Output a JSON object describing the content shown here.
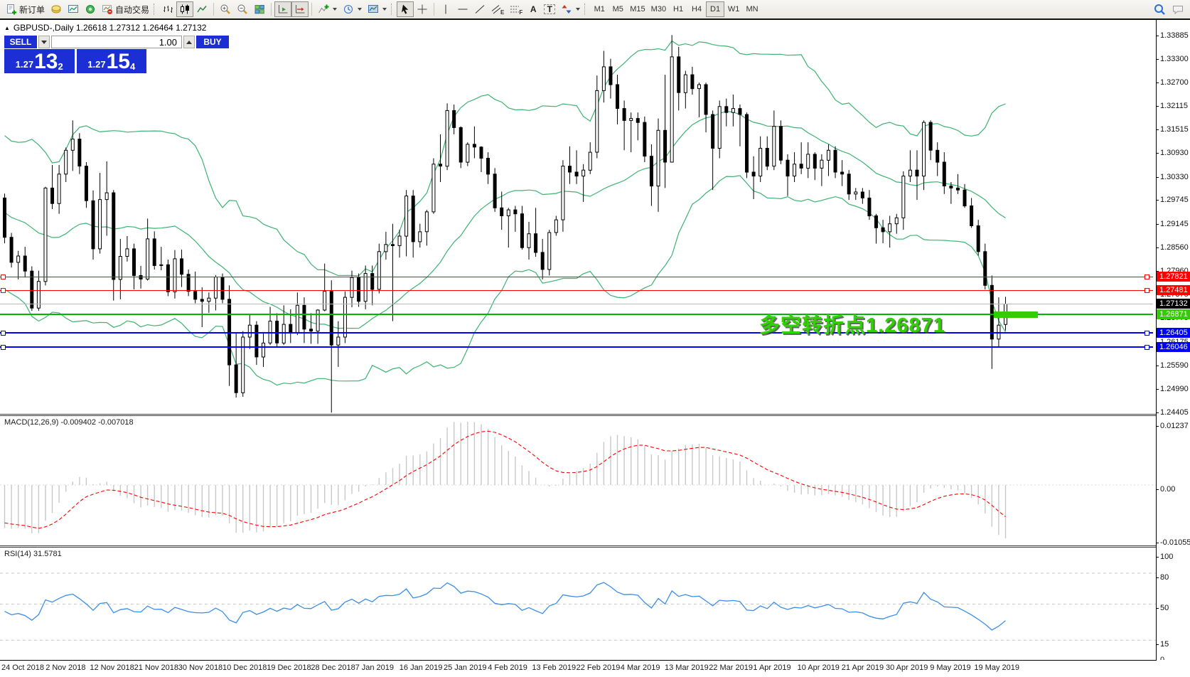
{
  "toolbar": {
    "new_order_label": "新订单",
    "autotrading_label": "自动交易",
    "timeframes": [
      "M1",
      "M5",
      "M15",
      "M30",
      "H1",
      "H4",
      "D1",
      "W1",
      "MN"
    ],
    "active_timeframe": "D1",
    "glyphs": {
      "text_tool": "A",
      "label_tool": "T",
      "channel_sub": "E",
      "fibo_sub": "F"
    },
    "icon_names": [
      "new-order-icon",
      "profiles-icon",
      "chart-window-icon",
      "signal-icon",
      "autotrading-icon",
      "bar-chart-icon",
      "candlestick-chart-icon",
      "line-chart-icon",
      "zoom-in-icon",
      "zoom-out-icon",
      "tile-windows-icon",
      "auto-scroll-icon",
      "chart-shift-icon",
      "indicators-icon",
      "periods-icon",
      "templates-icon",
      "cursor-icon",
      "crosshair-icon",
      "vertical-line-icon",
      "horizontal-line-icon",
      "trendline-icon",
      "channel-icon",
      "fibonacci-icon",
      "text-icon",
      "label-icon",
      "arrows-icon",
      "search-icon",
      "chat-icon"
    ]
  },
  "trade_panel": {
    "sell_label": "SELL",
    "buy_label": "BUY",
    "volume": "1.00",
    "sell_small": "1.27",
    "sell_big": "13",
    "sell_sup": "2",
    "buy_small": "1.27",
    "buy_big": "15",
    "buy_sup": "4",
    "panel_color": "#1c2fd4"
  },
  "chart": {
    "collapse_icon": "▲",
    "title": "GBPUSD-,Daily  1.26618 1.27312 1.26464 1.27132",
    "symbol": "GBPUSD-",
    "period": "Daily",
    "last_bar": {
      "open": "1.26618",
      "high": "1.27312",
      "low": "1.26464",
      "close": "1.27132"
    },
    "price_axis_labels": [
      "1.33885",
      "1.33300",
      "1.32700",
      "1.32115",
      "1.31515",
      "1.30930",
      "1.30330",
      "1.29745",
      "1.29145",
      "1.28560",
      "1.27960",
      "1.27375",
      "1.26775",
      "1.26175",
      "1.25590",
      "1.24990",
      "1.24405"
    ],
    "hlines": [
      {
        "price": 1.27821,
        "label": "1.27821",
        "color": "#ff0000",
        "thickness": 1,
        "handles": true
      },
      {
        "price": 1.27481,
        "label": "1.27481",
        "color": "#ff0000",
        "thickness": 1,
        "handles": true
      },
      {
        "price": 1.27132,
        "label": "1.27132",
        "color": "#b8b8b8",
        "badge": "#000000",
        "thickness": 1,
        "handles": false
      },
      {
        "price": 1.26871,
        "label": "1.26871",
        "color": "#00b400",
        "badge": "#33cc00",
        "thickness": 2,
        "handles": false
      },
      {
        "price": 1.26405,
        "label": "1.26405",
        "color": "#0000ff",
        "thickness": 2,
        "handles": true
      },
      {
        "price": 1.26046,
        "label": "1.26046",
        "color": "#0000ff",
        "thickness": 2,
        "handles": true
      }
    ],
    "annotation": {
      "text": "多空转折点1.26871",
      "color": "#2ed300"
    },
    "date_labels": [
      "24 Oct 2018",
      "2 Nov 2018",
      "12 Nov 2018",
      "21 Nov 2018",
      "30 Nov 2018",
      "10 Dec 2018",
      "19 Dec 2018",
      "28 Dec 2018",
      "7 Jan 2019",
      "16 Jan 2019",
      "25 Jan 2019",
      "4 Feb 2019",
      "13 Feb 2019",
      "22 Feb 2019",
      "4 Mar 2019",
      "13 Mar 2019",
      "22 Mar 2019",
      "1 Apr 2019",
      "10 Apr 2019",
      "21 Apr 2019",
      "30 Apr 2019",
      "9 May 2019",
      "19 May 2019"
    ]
  },
  "macd": {
    "label": "MACD(12,26,9) -0.009402 -0.007018",
    "axis_labels": [
      "0.01237",
      "0.00",
      "-0.010553"
    ]
  },
  "rsi": {
    "label": "RSI(14) 31.5781",
    "axis_labels": [
      "100",
      "80",
      "50",
      "15",
      "0"
    ],
    "levels": [
      80,
      50,
      15
    ]
  },
  "colors": {
    "bands": "#3cb371",
    "bull": "#ffffff",
    "bear": "#000000",
    "wick": "#000000",
    "macd_hist": "#c8c8c8",
    "macd_signal": "#ff0000",
    "rsi_line": "#3b8ee8",
    "level_dash": "#c8c8c8"
  },
  "chart_data": {
    "type": "candlestick",
    "symbol": "GBPUSD-",
    "timeframe": "Daily",
    "title": "GBPUSD-,Daily",
    "ylim": [
      1.24405,
      1.33885
    ],
    "indicators": [
      "Bollinger Bands(20,2)",
      "MACD(12,26,9)",
      "RSI(14)"
    ],
    "candles": [
      [
        1.298,
        1.2991,
        1.2866,
        1.2881
      ],
      [
        1.2881,
        1.2892,
        1.2805,
        1.2818
      ],
      [
        1.2818,
        1.2847,
        1.2775,
        1.2834
      ],
      [
        1.2834,
        1.2857,
        1.278,
        1.2796
      ],
      [
        1.2796,
        1.2808,
        1.2696,
        1.2703
      ],
      [
        1.2703,
        1.2797,
        1.2696,
        1.277
      ],
      [
        1.277,
        1.3008,
        1.276,
        1.3005
      ],
      [
        1.3005,
        1.3063,
        1.2952,
        1.2966
      ],
      [
        1.2966,
        1.3063,
        1.294,
        1.304
      ],
      [
        1.304,
        1.3107,
        1.302,
        1.31
      ],
      [
        1.31,
        1.3175,
        1.3048,
        1.3128
      ],
      [
        1.3128,
        1.3143,
        1.304,
        1.306
      ],
      [
        1.306,
        1.307,
        1.2955,
        1.2973
      ],
      [
        1.2973,
        1.2999,
        1.2825,
        1.2852
      ],
      [
        1.2852,
        1.3043,
        1.284,
        1.2976
      ],
      [
        1.2976,
        1.3072,
        1.2885,
        1.2993
      ],
      [
        1.2993,
        1.3,
        1.2722,
        1.2775
      ],
      [
        1.2775,
        1.2877,
        1.2725,
        1.2833
      ],
      [
        1.2833,
        1.2884,
        1.282,
        1.2852
      ],
      [
        1.2852,
        1.2865,
        1.275,
        1.2785
      ],
      [
        1.2785,
        1.2809,
        1.2752,
        1.2776
      ],
      [
        1.2776,
        1.2928,
        1.2772,
        1.2877
      ],
      [
        1.2877,
        1.2896,
        1.28,
        1.281
      ],
      [
        1.281,
        1.2857,
        1.2798,
        1.2812
      ],
      [
        1.2812,
        1.2825,
        1.2733,
        1.2744
      ],
      [
        1.2744,
        1.2849,
        1.2727,
        1.2827
      ],
      [
        1.2827,
        1.285,
        1.2756,
        1.2788
      ],
      [
        1.2788,
        1.28,
        1.2733,
        1.2745
      ],
      [
        1.2745,
        1.2795,
        1.2715,
        1.2725
      ],
      [
        1.2725,
        1.2755,
        1.2655,
        1.272
      ],
      [
        1.272,
        1.2742,
        1.2691,
        1.2728
      ],
      [
        1.2728,
        1.2786,
        1.2697,
        1.2781
      ],
      [
        1.2781,
        1.279,
        1.2715,
        1.2725
      ],
      [
        1.2725,
        1.276,
        1.2507,
        1.256
      ],
      [
        1.256,
        1.264,
        1.2478,
        1.249
      ],
      [
        1.249,
        1.2645,
        1.248,
        1.263
      ],
      [
        1.263,
        1.2686,
        1.26,
        1.266
      ],
      [
        1.266,
        1.267,
        1.256,
        1.258
      ],
      [
        1.258,
        1.264,
        1.2555,
        1.2615
      ],
      [
        1.2615,
        1.2706,
        1.261,
        1.267
      ],
      [
        1.267,
        1.269,
        1.2605,
        1.2615
      ],
      [
        1.2615,
        1.271,
        1.261,
        1.2662
      ],
      [
        1.2662,
        1.27,
        1.2615,
        1.264
      ],
      [
        1.264,
        1.2742,
        1.2635,
        1.271
      ],
      [
        1.271,
        1.273,
        1.2615,
        1.265
      ],
      [
        1.265,
        1.269,
        1.2613,
        1.2645
      ],
      [
        1.2645,
        1.27,
        1.2613,
        1.2698
      ],
      [
        1.2698,
        1.2815,
        1.2695,
        1.2745
      ],
      [
        1.2745,
        1.2773,
        1.244,
        1.261
      ],
      [
        1.261,
        1.267,
        1.2555,
        1.263
      ],
      [
        1.263,
        1.2745,
        1.2615,
        1.273
      ],
      [
        1.273,
        1.2797,
        1.2705,
        1.278
      ],
      [
        1.278,
        1.279,
        1.2706,
        1.272
      ],
      [
        1.272,
        1.281,
        1.27,
        1.279
      ],
      [
        1.279,
        1.281,
        1.271,
        1.275
      ],
      [
        1.275,
        1.2865,
        1.274,
        1.2845
      ],
      [
        1.2845,
        1.2895,
        1.2825,
        1.2863
      ],
      [
        1.2863,
        1.2915,
        1.267,
        1.286
      ],
      [
        1.286,
        1.29,
        1.283,
        1.2884
      ],
      [
        1.2884,
        1.3,
        1.2833,
        1.2985
      ],
      [
        1.2985,
        1.3,
        1.283,
        1.287
      ],
      [
        1.287,
        1.2915,
        1.2855,
        1.2895
      ],
      [
        1.2895,
        1.295,
        1.286,
        1.2945
      ],
      [
        1.2945,
        1.308,
        1.294,
        1.3065
      ],
      [
        1.3065,
        1.314,
        1.302,
        1.306
      ],
      [
        1.306,
        1.3218,
        1.305,
        1.32
      ],
      [
        1.32,
        1.3215,
        1.314,
        1.3157
      ],
      [
        1.3157,
        1.316,
        1.3055,
        1.307
      ],
      [
        1.307,
        1.312,
        1.306,
        1.3115
      ],
      [
        1.3115,
        1.316,
        1.308,
        1.3108
      ],
      [
        1.3108,
        1.311,
        1.3045,
        1.308
      ],
      [
        1.308,
        1.3095,
        1.3015,
        1.304
      ],
      [
        1.304,
        1.3055,
        1.2945,
        1.2955
      ],
      [
        1.2955,
        1.2996,
        1.29,
        1.2935
      ],
      [
        1.2935,
        1.2955,
        1.2855,
        1.295
      ],
      [
        1.295,
        1.296,
        1.2895,
        1.294
      ],
      [
        1.294,
        1.296,
        1.285,
        1.2855
      ],
      [
        1.2855,
        1.292,
        1.2825,
        1.289
      ],
      [
        1.289,
        1.2955,
        1.2832,
        1.2843
      ],
      [
        1.2843,
        1.2877,
        1.2775,
        1.28
      ],
      [
        1.28,
        1.29,
        1.2785,
        1.2893
      ],
      [
        1.2893,
        1.2935,
        1.2885,
        1.2925
      ],
      [
        1.2925,
        1.3075,
        1.2895,
        1.306
      ],
      [
        1.306,
        1.311,
        1.3015,
        1.3045
      ],
      [
        1.3045,
        1.31,
        1.3015,
        1.3035
      ],
      [
        1.3035,
        1.3065,
        1.297,
        1.305
      ],
      [
        1.305,
        1.312,
        1.304,
        1.3095
      ],
      [
        1.3095,
        1.3288,
        1.308,
        1.325
      ],
      [
        1.325,
        1.335,
        1.322,
        1.331
      ],
      [
        1.331,
        1.333,
        1.323,
        1.3265
      ],
      [
        1.3265,
        1.329,
        1.3165,
        1.3205
      ],
      [
        1.3205,
        1.3225,
        1.31,
        1.3175
      ],
      [
        1.3175,
        1.3195,
        1.3095,
        1.318
      ],
      [
        1.318,
        1.3195,
        1.3125,
        1.317
      ],
      [
        1.317,
        1.3185,
        1.307,
        1.3085
      ],
      [
        1.3085,
        1.3115,
        1.296,
        1.301
      ],
      [
        1.301,
        1.318,
        1.2945,
        1.315
      ],
      [
        1.315,
        1.329,
        1.3005,
        1.307
      ],
      [
        1.307,
        1.339,
        1.307,
        1.3335
      ],
      [
        1.3335,
        1.336,
        1.32,
        1.3245
      ],
      [
        1.3245,
        1.33,
        1.3205,
        1.329
      ],
      [
        1.329,
        1.331,
        1.324,
        1.3255
      ],
      [
        1.3255,
        1.327,
        1.3183,
        1.3265
      ],
      [
        1.3265,
        1.327,
        1.3145,
        1.319
      ],
      [
        1.319,
        1.32,
        1.3,
        1.3105
      ],
      [
        1.3105,
        1.3225,
        1.308,
        1.321
      ],
      [
        1.321,
        1.323,
        1.316,
        1.3195
      ],
      [
        1.3195,
        1.324,
        1.316,
        1.3205
      ],
      [
        1.3205,
        1.3215,
        1.311,
        1.319
      ],
      [
        1.319,
        1.3195,
        1.303,
        1.3045
      ],
      [
        1.3045,
        1.3085,
        1.2977,
        1.3035
      ],
      [
        1.3035,
        1.3135,
        1.302,
        1.3105
      ],
      [
        1.3105,
        1.3135,
        1.305,
        1.306
      ],
      [
        1.306,
        1.32,
        1.305,
        1.316
      ],
      [
        1.316,
        1.3175,
        1.3065,
        1.3075
      ],
      [
        1.3075,
        1.309,
        1.2985,
        1.3035
      ],
      [
        1.3035,
        1.3095,
        1.302,
        1.3065
      ],
      [
        1.3065,
        1.312,
        1.304,
        1.3055
      ],
      [
        1.3055,
        1.312,
        1.303,
        1.309
      ],
      [
        1.309,
        1.3095,
        1.3025,
        1.3055
      ],
      [
        1.3055,
        1.309,
        1.301,
        1.3075
      ],
      [
        1.3075,
        1.3115,
        1.3035,
        1.31
      ],
      [
        1.31,
        1.311,
        1.303,
        1.3045
      ],
      [
        1.3045,
        1.3075,
        1.301,
        1.304
      ],
      [
        1.304,
        1.305,
        1.2975,
        1.299
      ],
      [
        1.299,
        1.3005,
        1.2975,
        1.2995
      ],
      [
        1.2995,
        1.3005,
        1.2965,
        1.298
      ],
      [
        1.298,
        1.3,
        1.2925,
        1.2935
      ],
      [
        1.2935,
        1.294,
        1.2865,
        1.2905
      ],
      [
        1.2905,
        1.2925,
        1.2866,
        1.2895
      ],
      [
        1.2895,
        1.2935,
        1.2855,
        1.2915
      ],
      [
        1.2915,
        1.294,
        1.289,
        1.293
      ],
      [
        1.293,
        1.3047,
        1.29,
        1.3035
      ],
      [
        1.3035,
        1.31,
        1.302,
        1.305
      ],
      [
        1.305,
        1.31,
        1.2975,
        1.3035
      ],
      [
        1.3035,
        1.3175,
        1.3,
        1.317
      ],
      [
        1.317,
        1.3175,
        1.3075,
        1.31
      ],
      [
        1.31,
        1.312,
        1.3035,
        1.307
      ],
      [
        1.307,
        1.3095,
        1.299,
        1.301
      ],
      [
        1.301,
        1.302,
        1.2965,
        1.3005
      ],
      [
        1.3005,
        1.304,
        1.299,
        1.3
      ],
      [
        1.3,
        1.3015,
        1.2955,
        1.296
      ],
      [
        1.296,
        1.298,
        1.2905,
        1.291
      ],
      [
        1.291,
        1.2925,
        1.2835,
        1.2845
      ],
      [
        1.2845,
        1.2865,
        1.275,
        1.276
      ],
      [
        1.276,
        1.2785,
        1.255,
        1.2625
      ],
      [
        1.2625,
        1.273,
        1.2604,
        1.266
      ],
      [
        1.26618,
        1.27312,
        1.26464,
        1.27132
      ]
    ]
  }
}
